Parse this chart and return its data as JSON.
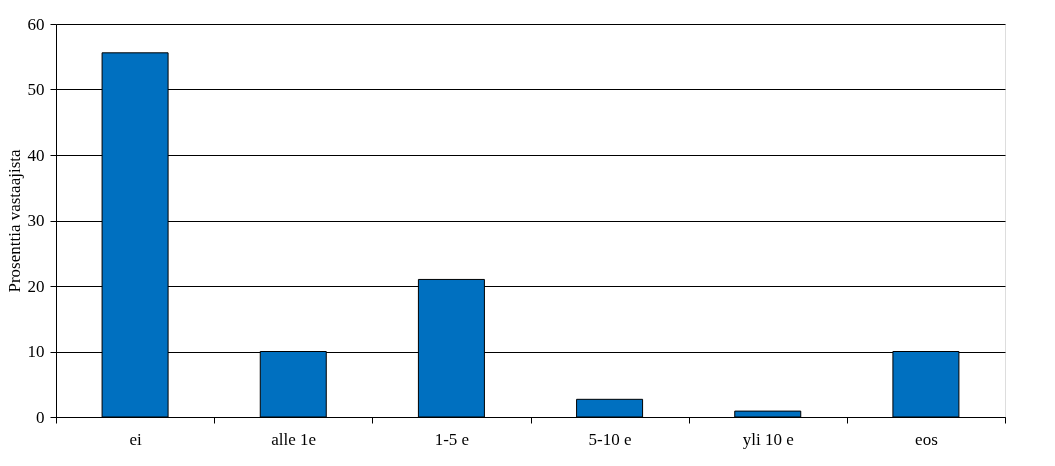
{
  "chart_data": {
    "type": "bar",
    "ylabel": "Prosenttia vastaajista",
    "categories": [
      "ei",
      "alle 1e",
      "1-5 e",
      "5-10 e",
      "yli 10 e",
      "eos"
    ],
    "values": [
      55.6,
      10,
      21,
      2.7,
      0.9,
      10
    ],
    "color": "#0070c0",
    "ylim": [
      0,
      60
    ],
    "yticks": [
      0,
      10,
      20,
      30,
      40,
      50,
      60
    ],
    "grid": "y"
  }
}
